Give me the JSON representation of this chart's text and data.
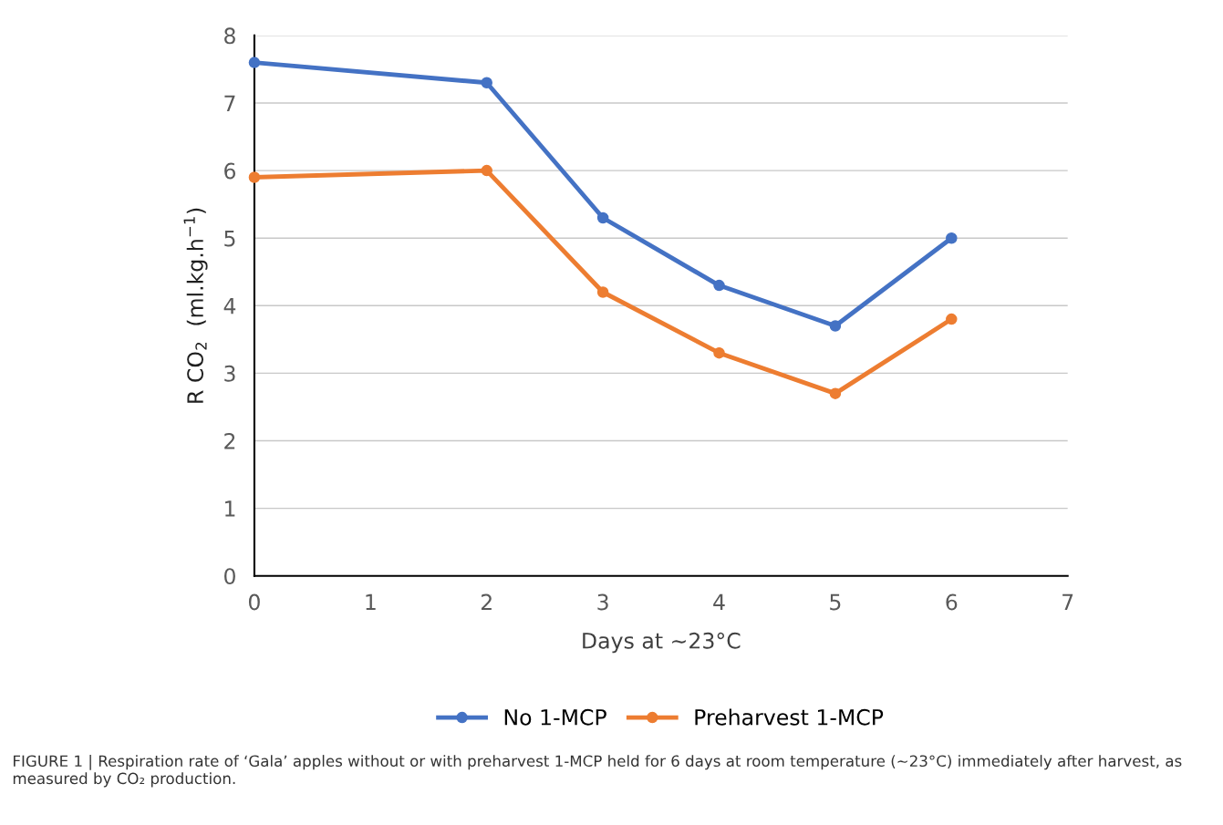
{
  "chart_data": {
    "type": "line",
    "xlabel": "Days at ~23°C",
    "ylabel": "R CO$_{2}$  (ml.kg.h$^{−1}$)",
    "x": [
      0,
      2,
      3,
      4,
      5,
      6
    ],
    "series": [
      {
        "name": "No 1-MCP",
        "color": "#4472c4",
        "values": [
          7.6,
          7.3,
          5.3,
          4.3,
          3.7,
          5.0
        ]
      },
      {
        "name": "Preharvest 1-MCP",
        "color": "#ed7d31",
        "values": [
          5.9,
          6.0,
          4.2,
          3.3,
          2.7,
          3.8
        ]
      }
    ],
    "xlim": [
      0,
      7
    ],
    "xticks": [
      0,
      1,
      2,
      3,
      4,
      5,
      6,
      7
    ],
    "ylim": [
      0,
      8
    ],
    "yticks": [
      0,
      1,
      2,
      3,
      4,
      5,
      6,
      7,
      8
    ],
    "grid": "y",
    "legend": "bottom",
    "marker": "circle",
    "line_style": "solid",
    "annotations": [
      "FIGURE 1 | Respiration rate of ‘Gala’ apples without or with preharvest 1-MCP held for 6 days at room temperature (~23°C) immediately after harvest, as measured by CO₂ production."
    ]
  }
}
